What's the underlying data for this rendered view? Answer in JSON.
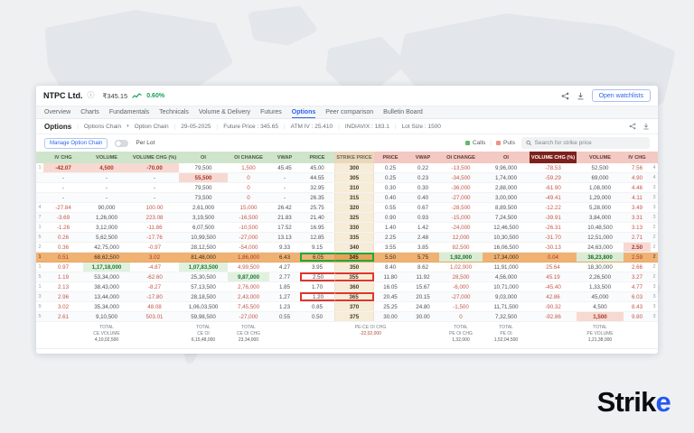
{
  "brand": {
    "logo_prefix": "Strik",
    "logo_suffix": "e",
    "accent": "#2457f1"
  },
  "window": {
    "stock": {
      "name": "NTPC Ltd.",
      "price": "₹345.15",
      "change_pct": "0.60%",
      "change_color": "#13a256"
    },
    "actions": {
      "open_watchlists": "Open watchlists"
    },
    "tabs": [
      "Overview",
      "Charts",
      "Fundamentals",
      "Technicals",
      "Volume & Delivery",
      "Futures",
      "Options",
      "Peer comparison",
      "Bulletin Board"
    ],
    "active_tab": "Options",
    "options_bar": {
      "title": "Options",
      "view": "Options Chain",
      "chain_type": "Option Chain",
      "expiry": "29-05-2025",
      "stats": [
        "Future Price : 345.65",
        "ATM IV : 25.410",
        "INDIAVIX : 183.1",
        "Lot Size : 1500"
      ]
    },
    "toolbar": {
      "manage_button": "Manage Option Chain",
      "per_lot_label": "Per Lot",
      "legend": {
        "calls": "Calls",
        "puts": "Puts",
        "calls_color": "#62ba68",
        "puts_color": "#ee928a"
      },
      "search_placeholder": "Search for strike price"
    },
    "table": {
      "headers": {
        "ce": [
          "IV CHG",
          "VOLUME",
          "VOLUME CHG (%)",
          "OI",
          "OI CHANGE",
          "VWAP",
          "PRICE"
        ],
        "strike": "STRIKE PRICE",
        "pe": [
          "PRICE",
          "VWAP",
          "OI CHANGE",
          "OI",
          "VOLUME CHG (%)",
          "VOLUME",
          "IV CHG"
        ],
        "pe_sorted_index": 4
      },
      "atm_row": 9,
      "rows": [
        {
          "clip_l": "1",
          "ce": [
            "-42.07",
            "4,500",
            "-70.00",
            "79,500",
            "1,500",
            "45.45",
            "45.00"
          ],
          "strike": "300",
          "pe": [
            "0.25",
            "0.22",
            "-13,500",
            "9,96,000",
            "-78.53",
            "52,500",
            "7.56"
          ],
          "clip_r": "4"
        },
        {
          "clip_l": "",
          "ce": [
            "-",
            "-",
            "-",
            "55,500",
            "0",
            "-",
            "44.55"
          ],
          "strike": "305",
          "pe": [
            "0.25",
            "0.23",
            "-34,500",
            "1,74,000",
            "-59.29",
            "69,000",
            "4.90"
          ],
          "clip_r": "4"
        },
        {
          "clip_l": "",
          "ce": [
            "-",
            "-",
            "-",
            "79,500",
            "0",
            "-",
            "32.95"
          ],
          "strike": "310",
          "pe": [
            "0.30",
            "0.30",
            "-36,000",
            "2,88,000",
            "-61.90",
            "1,08,000",
            "4.46"
          ],
          "clip_r": "3"
        },
        {
          "clip_l": "",
          "ce": [
            "-",
            "-",
            "-",
            "73,500",
            "0",
            "-",
            "26.35"
          ],
          "strike": "315",
          "pe": [
            "0.40",
            "0.40",
            "-27,000",
            "3,00,000",
            "-49.41",
            "1,29,000",
            "4.11"
          ],
          "clip_r": "3"
        },
        {
          "clip_l": "4",
          "ce": [
            "-27.84",
            "90,000",
            "100.00",
            "2,61,000",
            "15,000",
            "26.42",
            "25.75"
          ],
          "strike": "320",
          "pe": [
            "0.55",
            "0.67",
            "-28,500",
            "8,89,500",
            "-12.22",
            "5,28,000",
            "3.49"
          ],
          "clip_r": "3"
        },
        {
          "clip_l": "7",
          "ce": [
            "-3.69",
            "1,26,000",
            "223.08",
            "3,19,500",
            "-16,500",
            "21.83",
            "21.40"
          ],
          "strike": "325",
          "pe": [
            "0.90",
            "0.93",
            "-15,000",
            "7,24,500",
            "-39.91",
            "3,84,000",
            "3.31"
          ],
          "clip_r": "3"
        },
        {
          "clip_l": "1",
          "ce": [
            "-1.26",
            "3,12,000",
            "-11.86",
            "6,07,500",
            "-10,500",
            "17.52",
            "16.95"
          ],
          "strike": "330",
          "pe": [
            "1.40",
            "1.42",
            "-24,000",
            "12,46,500",
            "-26.31",
            "10,48,500",
            "3.13"
          ],
          "clip_r": "2"
        },
        {
          "clip_l": "5",
          "ce": [
            "0.26",
            "5,62,500",
            "-17.76",
            "10,99,500",
            "-27,000",
            "13.13",
            "12.85"
          ],
          "strike": "335",
          "pe": [
            "2.25",
            "2.48",
            "12,000",
            "10,30,500",
            "-31.70",
            "12,51,000",
            "2.71"
          ],
          "clip_r": "2"
        },
        {
          "clip_l": "2",
          "ce": [
            "0.36",
            "42,75,000",
            "-0.97",
            "28,12,500",
            "-54,000",
            "9.33",
            "9.15"
          ],
          "strike": "340",
          "pe": [
            "3.55",
            "3.85",
            "82,500",
            "16,06,500",
            "-30.13",
            "24,63,000",
            "2.50"
          ],
          "clip_r": "2"
        },
        {
          "clip_l": "1",
          "ce": [
            "0.51",
            "68,62,500",
            "3.02",
            "81,48,000",
            "1,86,000",
            "6.43",
            "6.05"
          ],
          "strike": "345",
          "pe": [
            "5.50",
            "5.75",
            "1,92,000",
            "17,34,000",
            "0.04",
            "38,23,800",
            "2.59"
          ],
          "clip_r": "2"
        },
        {
          "clip_l": "1",
          "ce": [
            "0.97",
            "1,17,18,000",
            "-4.87",
            "1,07,83,500",
            "4,99,500",
            "4.27",
            "3.95"
          ],
          "strike": "350",
          "pe": [
            "8.40",
            "8.62",
            "1,02,000",
            "11,91,000",
            "25.64",
            "18,30,000",
            "2.66"
          ],
          "clip_r": "2"
        },
        {
          "clip_l": "5",
          "ce": [
            "1.19",
            "53,34,000",
            "-62.60",
            "25,30,500",
            "9,87,000",
            "2.77",
            "2.50"
          ],
          "strike": "355",
          "pe": [
            "11.80",
            "11.92",
            "28,500",
            "4,56,000",
            "45.19",
            "2,26,500",
            "3.27"
          ],
          "clip_r": "2"
        },
        {
          "clip_l": "1",
          "ce": [
            "2.13",
            "38,43,000",
            "-8.27",
            "57,13,500",
            "2,76,000",
            "1.85",
            "1.70"
          ],
          "strike": "360",
          "pe": [
            "16.05",
            "15.67",
            "-6,000",
            "10,71,000",
            "-45.40",
            "1,33,500",
            "4.77"
          ],
          "clip_r": "3"
        },
        {
          "clip_l": "3",
          "ce": [
            "2.96",
            "13,44,000",
            "-17.80",
            "28,18,500",
            "2,43,000",
            "1.27",
            "1.20"
          ],
          "strike": "365",
          "pe": [
            "20.45",
            "20.15",
            "-27,000",
            "9,03,000",
            "42.86",
            "45,000",
            "6.03"
          ],
          "clip_r": "3"
        },
        {
          "clip_l": "9",
          "ce": [
            "3.02",
            "35,34,000",
            "48.08",
            "1,06,03,500",
            "7,45,500",
            "1.23",
            "0.85"
          ],
          "strike": "370",
          "pe": [
            "25.25",
            "24.80",
            "-1,500",
            "11,71,500",
            "-90.32",
            "4,500",
            "8.43"
          ],
          "clip_r": "3"
        },
        {
          "clip_l": "5",
          "ce": [
            "2.61",
            "9,10,500",
            "503.01",
            "59,98,500",
            "-27,000",
            "0.55",
            "0.50"
          ],
          "strike": "375",
          "pe": [
            "30.00",
            "30.00",
            "0",
            "7,32,500",
            "-92.86",
            "1,500",
            "9.80"
          ],
          "clip_r": "3"
        }
      ],
      "cell_styles": [
        {
          "row": 0,
          "side": "ce",
          "col": 0,
          "cls": "hl-red"
        },
        {
          "row": 0,
          "side": "ce",
          "col": 1,
          "cls": "hl-red"
        },
        {
          "row": 0,
          "side": "ce",
          "col": 2,
          "cls": "hl-red"
        },
        {
          "row": 1,
          "side": "ce",
          "col": 3,
          "cls": "hl-red"
        },
        {
          "row": 8,
          "side": "pe",
          "col": 6,
          "cls": "hl-red"
        },
        {
          "row": 9,
          "side": "pe",
          "col": 2,
          "cls": "hl-green"
        },
        {
          "row": 9,
          "side": "pe",
          "col": 5,
          "cls": "hl-green"
        },
        {
          "row": 10,
          "side": "ce",
          "col": 1,
          "cls": "hl-green"
        },
        {
          "row": 10,
          "side": "ce",
          "col": 3,
          "cls": "hl-green"
        },
        {
          "row": 11,
          "side": "ce",
          "col": 4,
          "cls": "hl-green"
        },
        {
          "row": 15,
          "side": "pe",
          "col": 5,
          "cls": "hl-red"
        }
      ],
      "annotations": [
        {
          "row": 9,
          "color": "#1fa93d"
        },
        {
          "row": 11,
          "color": "#e0362b"
        },
        {
          "row": 13,
          "color": "#e0362b"
        }
      ],
      "totals": [
        {
          "name": "total-ce-volume",
          "col": 3,
          "span": 1,
          "lines": [
            "TOTAL",
            "CE VOLUME"
          ],
          "value": "4,10,02,500"
        },
        {
          "name": "total-ce-oi",
          "col": 5,
          "span": 1,
          "lines": [
            "TOTAL",
            "CE OI"
          ],
          "value": "6,15,48,000"
        },
        {
          "name": "total-ce-oi-chg",
          "col": 6,
          "span": 1,
          "lines": [
            "TOTAL",
            "CE OI CHG"
          ],
          "value": "23,34,000"
        },
        {
          "name": "pe-ce-oi-chg",
          "col": 9,
          "span": 2,
          "lines": [
            "PE-CE OI CHG"
          ],
          "value": "-22,02,000",
          "red": true
        },
        {
          "name": "total-pe-oi-chg",
          "col": 12,
          "span": 1,
          "lines": [
            "TOTAL",
            "PE OI CHG"
          ],
          "value": "1,32,000"
        },
        {
          "name": "total-pe-oi",
          "col": 13,
          "span": 1,
          "lines": [
            "TOTAL",
            "PE OI"
          ],
          "value": "1,52,04,500"
        },
        {
          "name": "total-pe-volume",
          "col": 15,
          "span": 1,
          "lines": [
            "TOTAL",
            "PE VOLUME"
          ],
          "value": "1,21,38,000"
        }
      ]
    }
  }
}
